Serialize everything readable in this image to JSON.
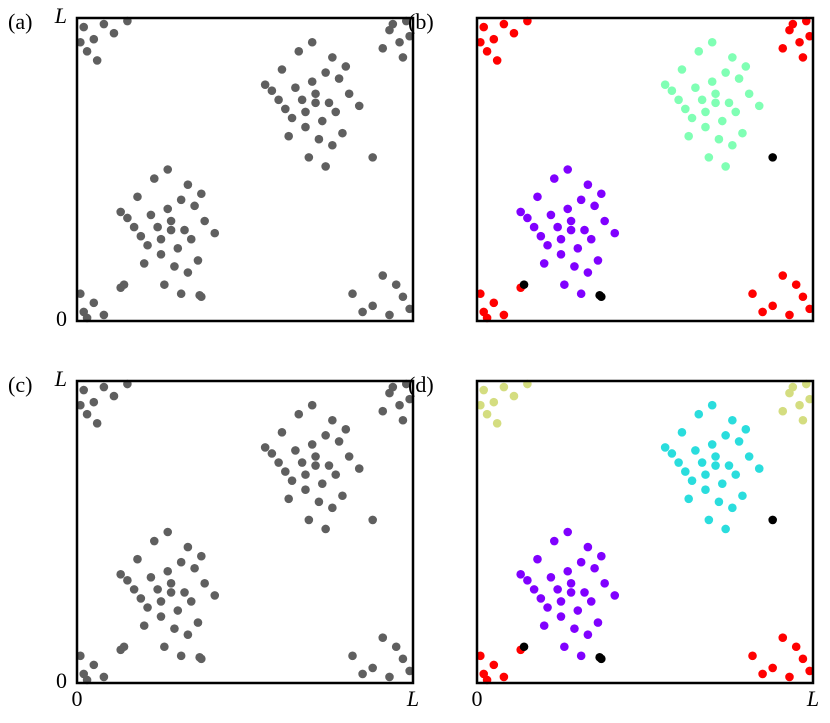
{
  "chart_data": [
    {
      "type": "scatter",
      "label": "(a)",
      "xlim": [
        0,
        1
      ],
      "ylim": [
        0,
        1
      ],
      "xticks": [],
      "yticks": [
        0,
        {
          "value": 1,
          "label": "L"
        }
      ],
      "series": [
        {
          "color": "#5f5f5f",
          "x": [
            0.28,
            0.22,
            0.34,
            0.19,
            0.31,
            0.25,
            0.38,
            0.15,
            0.29,
            0.33,
            0.21,
            0.27,
            0.36,
            0.24,
            0.18,
            0.32,
            0.26,
            0.41,
            0.13,
            0.3,
            0.23,
            0.35,
            0.28,
            0.2,
            0.37,
            0.25,
            0.31,
            0.17,
            0.33,
            0.27
          ],
          "values": [
            0.3,
            0.35,
            0.27,
            0.28,
            0.4,
            0.22,
            0.33,
            0.34,
            0.18,
            0.45,
            0.25,
            0.37,
            0.2,
            0.31,
            0.41,
            0.3,
            0.12,
            0.29,
            0.36,
            0.24,
            0.47,
            0.38,
            0.33,
            0.19,
            0.42,
            0.27,
            0.09,
            0.31,
            0.16,
            0.5
          ]
        },
        {
          "color": "#5f5f5f",
          "x": [
            0.71,
            0.65,
            0.77,
            0.62,
            0.74,
            0.68,
            0.81,
            0.58,
            0.72,
            0.76,
            0.64,
            0.7,
            0.79,
            0.67,
            0.61,
            0.75,
            0.69,
            0.84,
            0.56,
            0.73,
            0.66,
            0.78,
            0.71,
            0.63,
            0.8,
            0.68,
            0.74,
            0.6,
            0.76,
            0.7
          ],
          "values": [
            0.72,
            0.77,
            0.69,
            0.7,
            0.82,
            0.64,
            0.75,
            0.76,
            0.6,
            0.87,
            0.67,
            0.79,
            0.62,
            0.73,
            0.83,
            0.72,
            0.54,
            0.71,
            0.78,
            0.66,
            0.89,
            0.8,
            0.75,
            0.61,
            0.84,
            0.69,
            0.51,
            0.73,
            0.58,
            0.92
          ]
        },
        {
          "color": "#5f5f5f",
          "x": [
            0.02,
            0.05,
            0.08,
            0.11,
            0.03,
            0.15,
            0.06,
            0.01
          ],
          "values": [
            0.97,
            0.93,
            0.98,
            0.95,
            0.89,
            0.99,
            0.86,
            0.92
          ]
        },
        {
          "color": "#5f5f5f",
          "x": [
            0.93,
            0.96,
            0.98,
            0.91,
            0.97,
            0.99,
            0.94
          ],
          "values": [
            0.96,
            0.92,
            0.99,
            0.9,
            0.87,
            0.94,
            0.98
          ]
        },
        {
          "color": "#5f5f5f",
          "x": [
            0.02,
            0.05,
            0.01,
            0.08,
            0.03,
            0.13
          ],
          "values": [
            0.03,
            0.06,
            0.09,
            0.02,
            0.01,
            0.11
          ]
        },
        {
          "color": "#5f5f5f",
          "x": [
            0.88,
            0.93,
            0.97,
            0.85,
            0.95,
            0.99,
            0.91,
            0.82
          ],
          "values": [
            0.05,
            0.02,
            0.08,
            0.03,
            0.12,
            0.04,
            0.15,
            0.09
          ]
        },
        {
          "color": "#5f5f5f",
          "x": [
            0.88,
            0.14,
            0.37,
            0.365
          ],
          "values": [
            0.54,
            0.12,
            0.08,
            0.085
          ]
        }
      ]
    },
    {
      "type": "scatter",
      "label": "(b)",
      "xlim": [
        0,
        1
      ],
      "ylim": [
        0,
        1
      ],
      "xticks": [],
      "yticks": [],
      "series": [
        {
          "color": "#8000ff",
          "x": [
            0.28,
            0.22,
            0.34,
            0.19,
            0.31,
            0.25,
            0.38,
            0.15,
            0.29,
            0.33,
            0.21,
            0.27,
            0.36,
            0.24,
            0.18,
            0.32,
            0.26,
            0.41,
            0.13,
            0.3,
            0.23,
            0.35,
            0.28,
            0.2,
            0.37,
            0.25,
            0.31,
            0.17,
            0.33,
            0.27
          ],
          "values": [
            0.3,
            0.35,
            0.27,
            0.28,
            0.4,
            0.22,
            0.33,
            0.34,
            0.18,
            0.45,
            0.25,
            0.37,
            0.2,
            0.31,
            0.41,
            0.3,
            0.12,
            0.29,
            0.36,
            0.24,
            0.47,
            0.38,
            0.33,
            0.19,
            0.42,
            0.27,
            0.09,
            0.31,
            0.16,
            0.5
          ]
        },
        {
          "color": "#80ffb4",
          "x": [
            0.71,
            0.65,
            0.77,
            0.62,
            0.74,
            0.68,
            0.81,
            0.58,
            0.72,
            0.76,
            0.64,
            0.7,
            0.79,
            0.67,
            0.61,
            0.75,
            0.69,
            0.84,
            0.56,
            0.73,
            0.66,
            0.78,
            0.71,
            0.63,
            0.8,
            0.68,
            0.74,
            0.6,
            0.76,
            0.7
          ],
          "values": [
            0.72,
            0.77,
            0.69,
            0.7,
            0.82,
            0.64,
            0.75,
            0.76,
            0.6,
            0.87,
            0.67,
            0.79,
            0.62,
            0.73,
            0.83,
            0.72,
            0.54,
            0.71,
            0.78,
            0.66,
            0.89,
            0.8,
            0.75,
            0.61,
            0.84,
            0.69,
            0.51,
            0.73,
            0.58,
            0.92
          ]
        },
        {
          "color": "#ff0000",
          "x": [
            0.02,
            0.05,
            0.08,
            0.11,
            0.03,
            0.15,
            0.06,
            0.01
          ],
          "values": [
            0.97,
            0.93,
            0.98,
            0.95,
            0.89,
            0.99,
            0.86,
            0.92
          ]
        },
        {
          "color": "#ff0000",
          "x": [
            0.93,
            0.96,
            0.98,
            0.91,
            0.97,
            0.99,
            0.94
          ],
          "values": [
            0.96,
            0.92,
            0.99,
            0.9,
            0.87,
            0.94,
            0.98
          ]
        },
        {
          "color": "#ff0000",
          "x": [
            0.02,
            0.05,
            0.01,
            0.08,
            0.03,
            0.13
          ],
          "values": [
            0.03,
            0.06,
            0.09,
            0.02,
            0.01,
            0.11
          ]
        },
        {
          "color": "#ff0000",
          "x": [
            0.88,
            0.93,
            0.97,
            0.85,
            0.95,
            0.99,
            0.91,
            0.82
          ],
          "values": [
            0.05,
            0.02,
            0.08,
            0.03,
            0.12,
            0.04,
            0.15,
            0.09
          ]
        },
        {
          "color": "#000000",
          "x": [
            0.88,
            0.14,
            0.37,
            0.365
          ],
          "values": [
            0.54,
            0.12,
            0.08,
            0.085
          ]
        }
      ]
    },
    {
      "type": "scatter",
      "label": "(c)",
      "xlim": [
        0,
        1
      ],
      "ylim": [
        0,
        1
      ],
      "xticks": [
        0,
        {
          "value": 1,
          "label": "L"
        }
      ],
      "yticks": [
        0,
        {
          "value": 1,
          "label": "L"
        }
      ],
      "series": [
        {
          "color": "#5f5f5f",
          "x": [
            0.28,
            0.22,
            0.34,
            0.19,
            0.31,
            0.25,
            0.38,
            0.15,
            0.29,
            0.33,
            0.21,
            0.27,
            0.36,
            0.24,
            0.18,
            0.32,
            0.26,
            0.41,
            0.13,
            0.3,
            0.23,
            0.35,
            0.28,
            0.2,
            0.37,
            0.25,
            0.31,
            0.17,
            0.33,
            0.27
          ],
          "values": [
            0.3,
            0.35,
            0.27,
            0.28,
            0.4,
            0.22,
            0.33,
            0.34,
            0.18,
            0.45,
            0.25,
            0.37,
            0.2,
            0.31,
            0.41,
            0.3,
            0.12,
            0.29,
            0.36,
            0.24,
            0.47,
            0.38,
            0.33,
            0.19,
            0.42,
            0.27,
            0.09,
            0.31,
            0.16,
            0.5
          ]
        },
        {
          "color": "#5f5f5f",
          "x": [
            0.71,
            0.65,
            0.77,
            0.62,
            0.74,
            0.68,
            0.81,
            0.58,
            0.72,
            0.76,
            0.64,
            0.7,
            0.79,
            0.67,
            0.61,
            0.75,
            0.69,
            0.84,
            0.56,
            0.73,
            0.66,
            0.78,
            0.71,
            0.63,
            0.8,
            0.68,
            0.74,
            0.6,
            0.76,
            0.7
          ],
          "values": [
            0.72,
            0.77,
            0.69,
            0.7,
            0.82,
            0.64,
            0.75,
            0.76,
            0.6,
            0.87,
            0.67,
            0.79,
            0.62,
            0.73,
            0.83,
            0.72,
            0.54,
            0.71,
            0.78,
            0.66,
            0.89,
            0.8,
            0.75,
            0.61,
            0.84,
            0.69,
            0.51,
            0.73,
            0.58,
            0.92
          ]
        },
        {
          "color": "#5f5f5f",
          "x": [
            0.02,
            0.05,
            0.08,
            0.11,
            0.03,
            0.15,
            0.06,
            0.01
          ],
          "values": [
            0.97,
            0.93,
            0.98,
            0.95,
            0.89,
            0.99,
            0.86,
            0.92
          ]
        },
        {
          "color": "#5f5f5f",
          "x": [
            0.93,
            0.96,
            0.98,
            0.91,
            0.97,
            0.99,
            0.94
          ],
          "values": [
            0.96,
            0.92,
            0.99,
            0.9,
            0.87,
            0.94,
            0.98
          ]
        },
        {
          "color": "#5f5f5f",
          "x": [
            0.02,
            0.05,
            0.01,
            0.08,
            0.03,
            0.13
          ],
          "values": [
            0.03,
            0.06,
            0.09,
            0.02,
            0.01,
            0.11
          ]
        },
        {
          "color": "#5f5f5f",
          "x": [
            0.88,
            0.93,
            0.97,
            0.85,
            0.95,
            0.99,
            0.91,
            0.82
          ],
          "values": [
            0.05,
            0.02,
            0.08,
            0.03,
            0.12,
            0.04,
            0.15,
            0.09
          ]
        },
        {
          "color": "#5f5f5f",
          "x": [
            0.88,
            0.14,
            0.37,
            0.365
          ],
          "values": [
            0.54,
            0.12,
            0.08,
            0.085
          ]
        }
      ]
    },
    {
      "type": "scatter",
      "label": "(d)",
      "xlim": [
        0,
        1
      ],
      "ylim": [
        0,
        1
      ],
      "xticks": [
        0,
        {
          "value": 1,
          "label": "L"
        }
      ],
      "yticks": [],
      "series": [
        {
          "color": "#8000ff",
          "x": [
            0.28,
            0.22,
            0.34,
            0.19,
            0.31,
            0.25,
            0.38,
            0.15,
            0.29,
            0.33,
            0.21,
            0.27,
            0.36,
            0.24,
            0.18,
            0.32,
            0.26,
            0.41,
            0.13,
            0.3,
            0.23,
            0.35,
            0.28,
            0.2,
            0.37,
            0.25,
            0.31,
            0.17,
            0.33,
            0.27
          ],
          "values": [
            0.3,
            0.35,
            0.27,
            0.28,
            0.4,
            0.22,
            0.33,
            0.34,
            0.18,
            0.45,
            0.25,
            0.37,
            0.2,
            0.31,
            0.41,
            0.3,
            0.12,
            0.29,
            0.36,
            0.24,
            0.47,
            0.38,
            0.33,
            0.19,
            0.42,
            0.27,
            0.09,
            0.31,
            0.16,
            0.5
          ]
        },
        {
          "color": "#2adddd",
          "x": [
            0.71,
            0.65,
            0.77,
            0.62,
            0.74,
            0.68,
            0.81,
            0.58,
            0.72,
            0.76,
            0.64,
            0.7,
            0.79,
            0.67,
            0.61,
            0.75,
            0.69,
            0.84,
            0.56,
            0.73,
            0.66,
            0.78,
            0.71,
            0.63,
            0.8,
            0.68,
            0.74,
            0.6,
            0.76,
            0.7
          ],
          "values": [
            0.72,
            0.77,
            0.69,
            0.7,
            0.82,
            0.64,
            0.75,
            0.76,
            0.6,
            0.87,
            0.67,
            0.79,
            0.62,
            0.73,
            0.83,
            0.72,
            0.54,
            0.71,
            0.78,
            0.66,
            0.89,
            0.8,
            0.75,
            0.61,
            0.84,
            0.69,
            0.51,
            0.73,
            0.58,
            0.92
          ]
        },
        {
          "color": "#d4dd80",
          "x": [
            0.02,
            0.05,
            0.08,
            0.11,
            0.03,
            0.15,
            0.06,
            0.01
          ],
          "values": [
            0.97,
            0.93,
            0.98,
            0.95,
            0.89,
            0.99,
            0.86,
            0.92
          ]
        },
        {
          "color": "#d4dd80",
          "x": [
            0.93,
            0.96,
            0.98,
            0.91,
            0.97,
            0.99,
            0.94
          ],
          "values": [
            0.96,
            0.92,
            0.99,
            0.9,
            0.87,
            0.94,
            0.98
          ]
        },
        {
          "color": "#ff0000",
          "x": [
            0.02,
            0.05,
            0.01,
            0.08,
            0.03,
            0.13
          ],
          "values": [
            0.03,
            0.06,
            0.09,
            0.02,
            0.01,
            0.11
          ]
        },
        {
          "color": "#ff0000",
          "x": [
            0.88,
            0.93,
            0.97,
            0.85,
            0.95,
            0.99,
            0.91,
            0.82
          ],
          "values": [
            0.05,
            0.02,
            0.08,
            0.03,
            0.12,
            0.04,
            0.15,
            0.09
          ]
        },
        {
          "color": "#000000",
          "x": [
            0.88,
            0.14,
            0.37,
            0.365
          ],
          "values": [
            0.54,
            0.12,
            0.08,
            0.085
          ]
        }
      ]
    }
  ]
}
